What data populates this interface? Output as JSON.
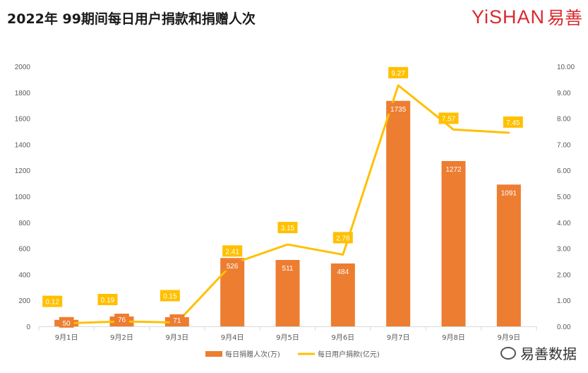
{
  "title": "2022年 99期间每日用户捐款和捐赠人次",
  "logo": {
    "text": "YiSHAN",
    "cn": "易善"
  },
  "watermark": {
    "text": "易善数据"
  },
  "colors": {
    "bar": "#ed7d31",
    "line": "#ffc000",
    "axis": "#d9d9d9",
    "text": "#595959"
  },
  "chart_data": {
    "type": "bar",
    "categories": [
      "9月1日",
      "9月2日",
      "9月3日",
      "9月4日",
      "9月5日",
      "9月6日",
      "9月7日",
      "9月8日",
      "9月9日"
    ],
    "series": [
      {
        "name": "每日捐赠人次(万)",
        "type": "bar",
        "axis": "left",
        "values": [
          50,
          76,
          71,
          526,
          511,
          484,
          1735,
          1272,
          1091
        ],
        "labels": [
          "50",
          "76",
          "71",
          "526",
          "511",
          "484",
          "1735",
          "1272",
          "1091"
        ]
      },
      {
        "name": "每日用户捐款(亿元)",
        "type": "line",
        "axis": "right",
        "values": [
          0.12,
          0.19,
          0.15,
          2.41,
          3.15,
          2.76,
          9.27,
          7.57,
          7.45
        ],
        "labels": [
          "0.12",
          "0.19",
          "0.15",
          "2.41",
          "3.15",
          "2.76",
          "9.27",
          "7.57",
          "7.45"
        ]
      }
    ],
    "y_left": {
      "range": [
        0,
        2000
      ],
      "ticks": [
        "0",
        "200",
        "400",
        "600",
        "800",
        "1000",
        "1200",
        "1400",
        "1600",
        "1800",
        "2000"
      ]
    },
    "y_right": {
      "range": [
        0,
        10
      ],
      "ticks": [
        "0.00",
        "1.00",
        "2.00",
        "3.00",
        "4.00",
        "5.00",
        "6.00",
        "7.00",
        "8.00",
        "9.00",
        "10.00"
      ]
    },
    "grid": false,
    "legend": "bottom"
  }
}
